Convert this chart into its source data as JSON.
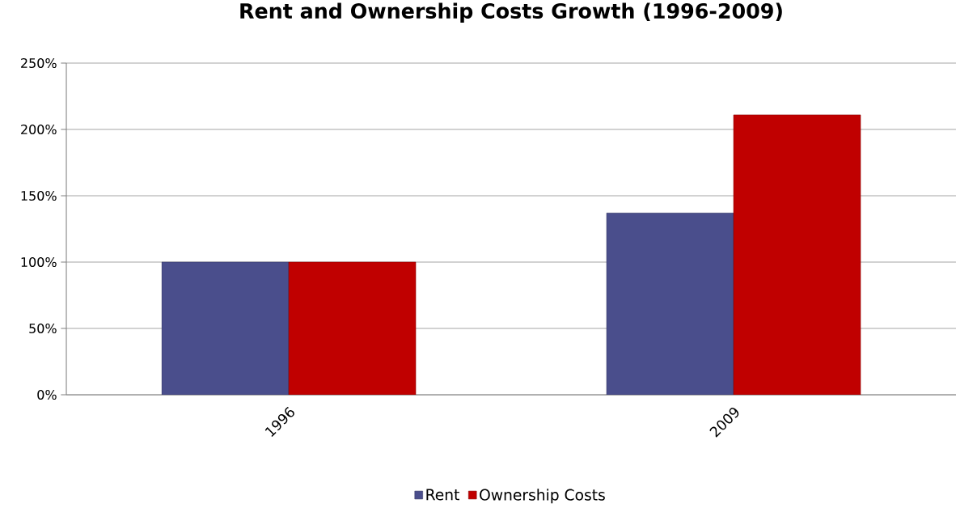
{
  "chart_data": {
    "type": "bar",
    "title": "Rent and Ownership Costs Growth (1996-2009)",
    "categories": [
      "1996",
      "2009"
    ],
    "series": [
      {
        "name": "Rent",
        "color": "#4a4e8c",
        "values": [
          100,
          137
        ]
      },
      {
        "name": "Ownership Costs",
        "color": "#c00000",
        "values": [
          100,
          211
        ]
      }
    ],
    "ylim": [
      0,
      250
    ],
    "yticks": [
      {
        "value": 0,
        "label": "0%"
      },
      {
        "value": 50,
        "label": "50%"
      },
      {
        "value": 100,
        "label": "100%"
      },
      {
        "value": 150,
        "label": "150%"
      },
      {
        "value": 200,
        "label": "200%"
      },
      {
        "value": 250,
        "label": "250%"
      }
    ],
    "grid": "y",
    "legend": "bottom"
  }
}
